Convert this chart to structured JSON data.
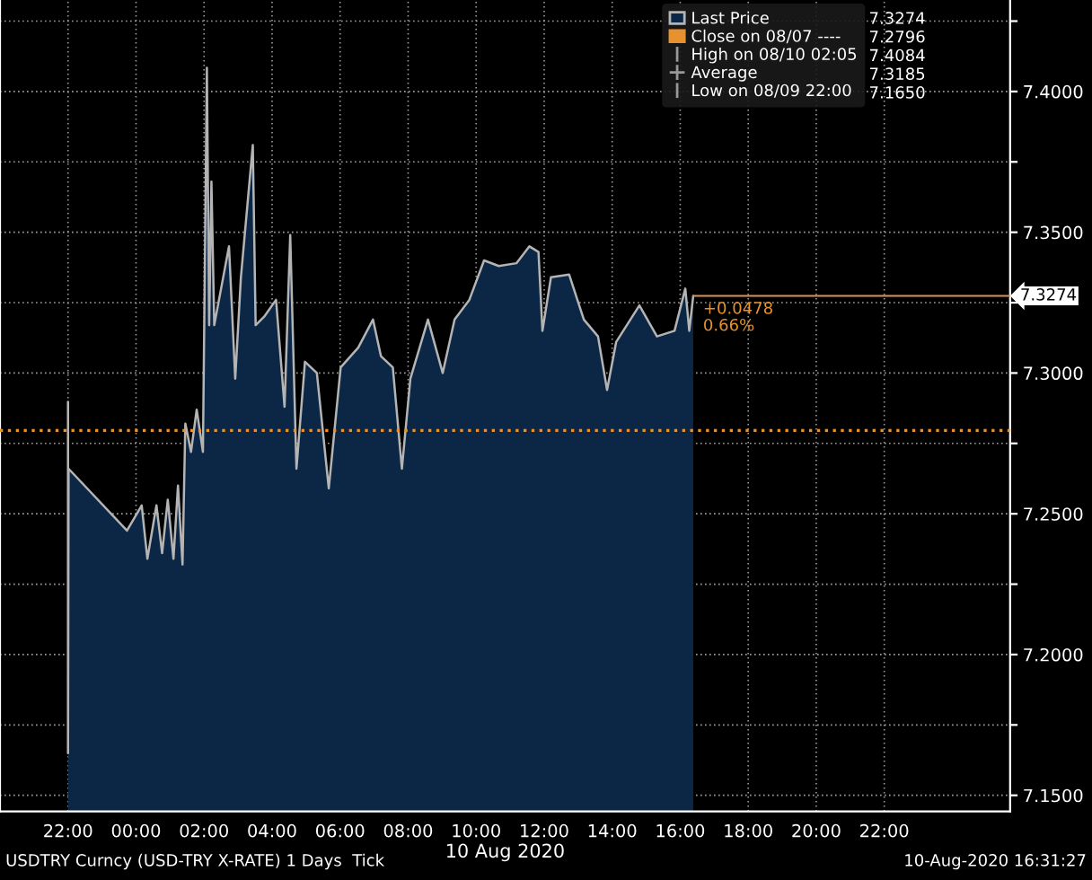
{
  "chart_data": {
    "type": "area",
    "xlabel": "10 Aug 2020",
    "x": [
      "2020-08-09T22:00",
      "2020-08-09T22:00",
      "2020-08-09T22:01",
      "2020-08-09T23:44",
      "2020-08-10T00:10",
      "2020-08-10T00:20",
      "2020-08-10T00:36",
      "2020-08-10T00:46",
      "2020-08-10T00:56",
      "2020-08-10T01:06",
      "2020-08-10T01:14",
      "2020-08-10T01:22",
      "2020-08-10T01:27",
      "2020-08-10T01:37",
      "2020-08-10T01:47",
      "2020-08-10T01:58",
      "2020-08-10T02:05",
      "2020-08-10T02:09",
      "2020-08-10T02:13",
      "2020-08-10T02:18",
      "2020-08-10T02:44",
      "2020-08-10T02:55",
      "2020-08-10T03:05",
      "2020-08-10T03:26",
      "2020-08-10T03:31",
      "2020-08-10T03:46",
      "2020-08-10T04:07",
      "2020-08-10T04:22",
      "2020-08-10T04:32",
      "2020-08-10T04:43",
      "2020-08-10T04:58",
      "2020-08-10T05:19",
      "2020-08-10T05:40",
      "2020-08-10T06:01",
      "2020-08-10T06:32",
      "2020-08-10T06:58",
      "2020-08-10T07:12",
      "2020-08-10T07:33",
      "2020-08-10T07:49",
      "2020-08-10T08:04",
      "2020-08-10T08:35",
      "2020-08-10T09:01",
      "2020-08-10T09:22",
      "2020-08-10T09:48",
      "2020-08-10T10:14",
      "2020-08-10T10:40",
      "2020-08-10T11:11",
      "2020-08-10T11:34",
      "2020-08-10T11:50",
      "2020-08-10T11:57",
      "2020-08-10T12:12",
      "2020-08-10T12:44",
      "2020-08-10T13:10",
      "2020-08-10T13:35",
      "2020-08-10T13:51",
      "2020-08-10T14:07",
      "2020-08-10T14:48",
      "2020-08-10T15:19",
      "2020-08-10T15:50",
      "2020-08-10T16:09",
      "2020-08-10T16:16",
      "2020-08-10T16:23"
    ],
    "series": [
      {
        "name": "Last Price",
        "color": "#0c2646",
        "values": [
          7.2898,
          7.165,
          7.266,
          7.244,
          7.253,
          7.234,
          7.253,
          7.236,
          7.255,
          7.234,
          7.26,
          7.232,
          7.282,
          7.272,
          7.287,
          7.272,
          7.4084,
          7.317,
          7.368,
          7.317,
          7.345,
          7.298,
          7.334,
          7.381,
          7.317,
          7.32,
          7.326,
          7.288,
          7.349,
          7.266,
          7.304,
          7.3,
          7.259,
          7.302,
          7.309,
          7.319,
          7.306,
          7.302,
          7.266,
          7.298,
          7.319,
          7.3,
          7.319,
          7.326,
          7.34,
          7.338,
          7.339,
          7.345,
          7.343,
          7.315,
          7.334,
          7.335,
          7.319,
          7.313,
          7.294,
          7.311,
          7.324,
          7.313,
          7.315,
          7.33,
          7.315,
          7.3274
        ]
      }
    ],
    "ref_lines": [
      {
        "axis": "y",
        "value": 7.2796,
        "label": "Close on 08/07 ----",
        "color": "#e8912f",
        "line_style": "dotted"
      },
      {
        "axis": "y",
        "value": 7.3274,
        "label": "7.3274",
        "color": "#d9925a",
        "line_style": "solid"
      }
    ],
    "annotations": [
      "High on 08/10 02:05",
      "Average",
      "Low on 08/09 22:00",
      "7.3274",
      "7.2796",
      "7.4084",
      "7.3185",
      "7.1650",
      "+0.0478",
      "0.66%",
      "USDTRY Curncy (USD-TRY X-RATE) 1 Days  Tick",
      "10-Aug-2020 16:31:27"
    ],
    "xlim": [
      "2020-08-09T20:00",
      "2020-08-11T01:42"
    ],
    "ylim": [
      7.1443,
      7.4325
    ],
    "xticks": [
      {
        "value": "2020-08-09T22:00",
        "label": "22:00"
      },
      {
        "value": "2020-08-10T00:00",
        "label": "00:00"
      },
      {
        "value": "2020-08-10T02:00",
        "label": "02:00"
      },
      {
        "value": "2020-08-10T04:00",
        "label": "04:00"
      },
      {
        "value": "2020-08-10T06:00",
        "label": "06:00"
      },
      {
        "value": "2020-08-10T08:00",
        "label": "08:00"
      },
      {
        "value": "2020-08-10T10:00",
        "label": "10:00"
      },
      {
        "value": "2020-08-10T12:00",
        "label": "12:00"
      },
      {
        "value": "2020-08-10T14:00",
        "label": "14:00"
      },
      {
        "value": "2020-08-10T16:00",
        "label": "16:00"
      },
      {
        "value": "2020-08-10T18:00",
        "label": "18:00"
      },
      {
        "value": "2020-08-10T20:00",
        "label": "20:00"
      },
      {
        "value": "2020-08-10T22:00",
        "label": "22:00"
      }
    ],
    "yticks": [
      {
        "value": 7.15,
        "label": "7.1500"
      },
      {
        "value": 7.175,
        "label": null
      },
      {
        "value": 7.2,
        "label": "7.2000"
      },
      {
        "value": 7.225,
        "label": null
      },
      {
        "value": 7.25,
        "label": "7.2500"
      },
      {
        "value": 7.275,
        "label": null
      },
      {
        "value": 7.3,
        "label": "7.3000"
      },
      {
        "value": 7.325,
        "label": null
      },
      {
        "value": 7.35,
        "label": "7.3500"
      },
      {
        "value": 7.375,
        "label": null
      },
      {
        "value": 7.4,
        "label": "7.4000"
      },
      {
        "value": 7.425,
        "label": null
      }
    ],
    "grid": true,
    "legend": "top right",
    "line_style": "solid",
    "marker": "none"
  }
}
